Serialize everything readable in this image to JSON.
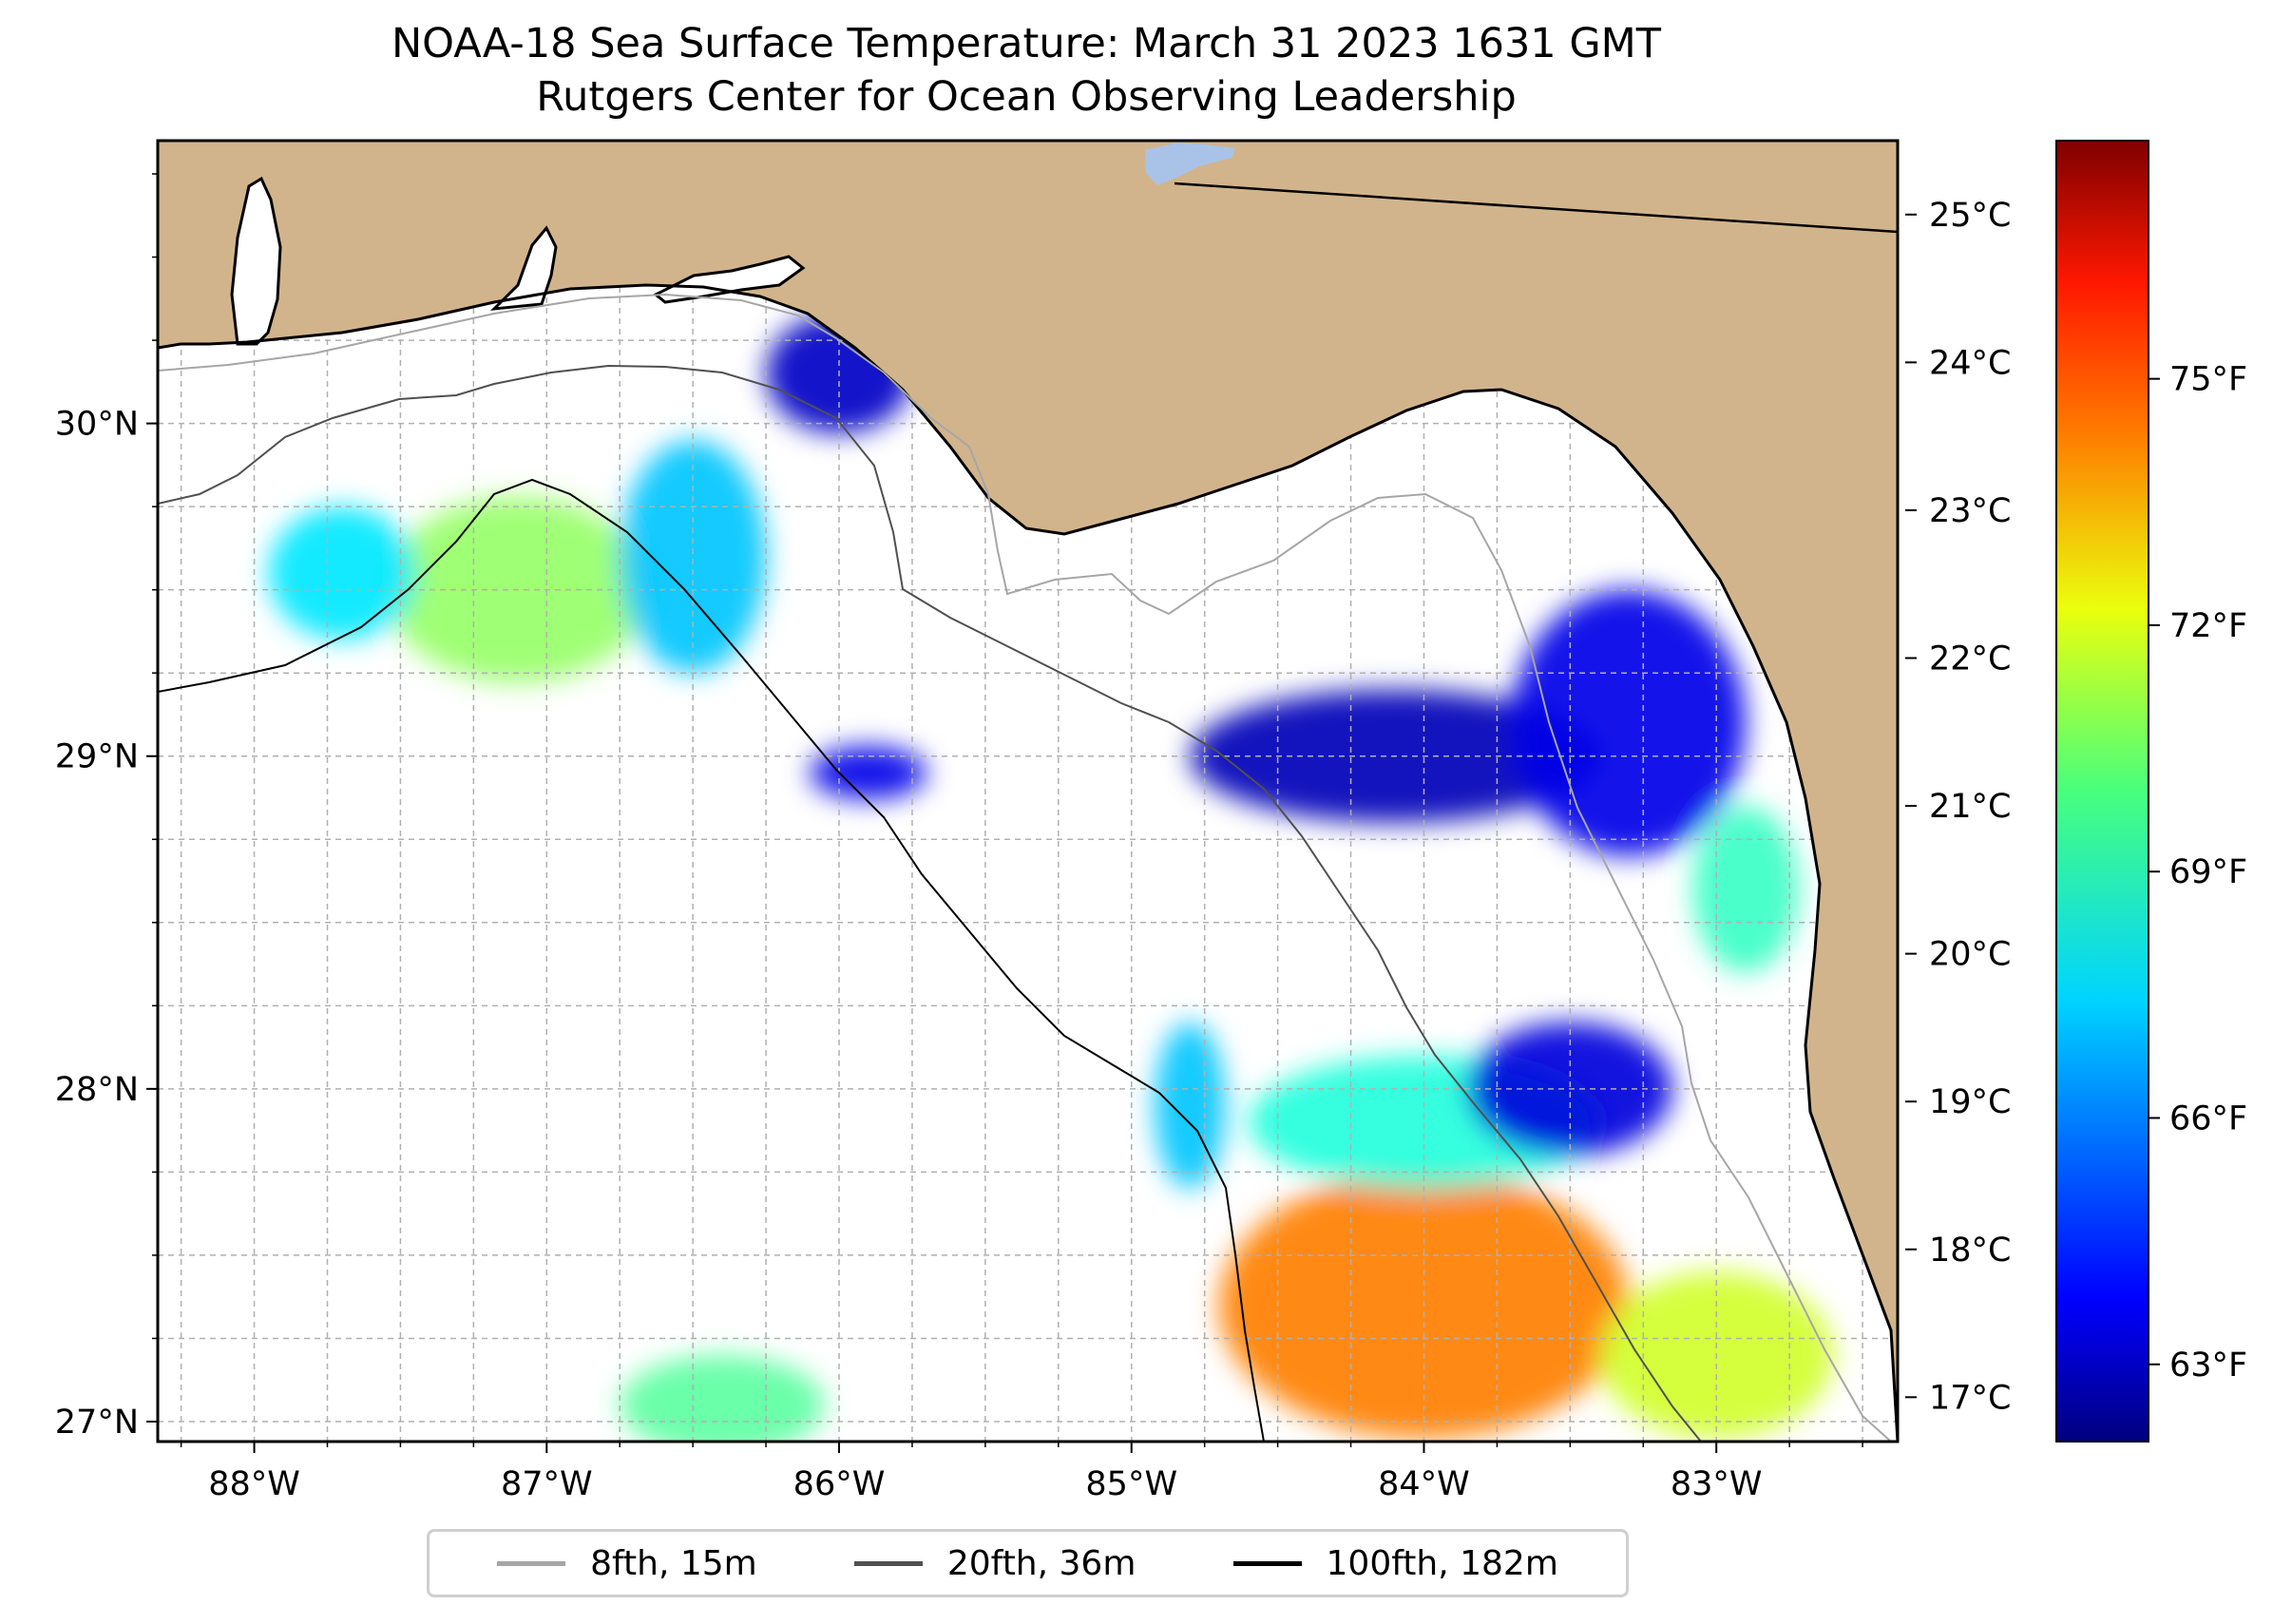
{
  "title": {
    "line1": "NOAA-18 Sea Surface Temperature: March 31 2023 1631 GMT",
    "line2": "Rutgers Center for Ocean Observing Leadership"
  },
  "map": {
    "region": "Northeastern Gulf of Mexico / Florida Big Bend",
    "lon_range": [
      -88.33,
      -82.38
    ],
    "lat_range": [
      26.94,
      30.85
    ],
    "lon_ticks": [
      {
        "value": -88,
        "label": "88°W"
      },
      {
        "value": -87,
        "label": "87°W"
      },
      {
        "value": -86,
        "label": "86°W"
      },
      {
        "value": -85,
        "label": "85°W"
      },
      {
        "value": -84,
        "label": "84°W"
      },
      {
        "value": -83,
        "label": "83°W"
      }
    ],
    "lat_ticks": [
      {
        "value": 27,
        "label": "27°N"
      },
      {
        "value": 28,
        "label": "28°N"
      },
      {
        "value": 29,
        "label": "29°N"
      },
      {
        "value": 30,
        "label": "30°N"
      }
    ],
    "gridlines": true,
    "colors": {
      "land": "#d2b48c",
      "ocean": "#ffffff",
      "coastline": "#000000",
      "grid": "#b0b0b0",
      "iso_8fth": "#a6a6a6",
      "iso_20fth": "#505050",
      "iso_100fth": "#000000",
      "lake": "#a9c3e8"
    }
  },
  "colorbar": {
    "colormap": "jet",
    "celsius_range": [
      16.7,
      25.5
    ],
    "celsius_ticks": [
      {
        "value": 17,
        "label": "17°C"
      },
      {
        "value": 18,
        "label": "18°C"
      },
      {
        "value": 19,
        "label": "19°C"
      },
      {
        "value": 20,
        "label": "20°C"
      },
      {
        "value": 21,
        "label": "21°C"
      },
      {
        "value": 22,
        "label": "22°C"
      },
      {
        "value": 23,
        "label": "23°C"
      },
      {
        "value": 24,
        "label": "24°C"
      },
      {
        "value": 25,
        "label": "25°C"
      }
    ],
    "fahrenheit_ticks": [
      {
        "value": 63,
        "label": "63°F"
      },
      {
        "value": 66,
        "label": "66°F"
      },
      {
        "value": 69,
        "label": "69°F"
      },
      {
        "value": 72,
        "label": "72°F"
      },
      {
        "value": 75,
        "label": "75°F"
      }
    ]
  },
  "legend": {
    "placement": "bottom-center",
    "items": [
      {
        "label": "8fth, 15m",
        "color": "#a6a6a6"
      },
      {
        "label": "20fth, 36m",
        "color": "#505050"
      },
      {
        "label": "100fth, 182m",
        "color": "#000000"
      }
    ]
  },
  "sst_patches": [
    {
      "lon": -87.1,
      "lat": 29.5,
      "rx_deg": 0.45,
      "ry_deg": 0.28,
      "temp_c": 21.3
    },
    {
      "lon": -86.5,
      "lat": 29.6,
      "rx_deg": 0.25,
      "ry_deg": 0.35,
      "temp_c": 19.5
    },
    {
      "lon": -87.7,
      "lat": 29.55,
      "rx_deg": 0.25,
      "ry_deg": 0.2,
      "temp_c": 19.8
    },
    {
      "lon": -86.0,
      "lat": 30.15,
      "rx_deg": 0.25,
      "ry_deg": 0.18,
      "temp_c": 17.3
    },
    {
      "lon": -84.0,
      "lat": 27.35,
      "rx_deg": 0.7,
      "ry_deg": 0.4,
      "temp_c": 23.3
    },
    {
      "lon": -84.0,
      "lat": 27.9,
      "rx_deg": 0.6,
      "ry_deg": 0.2,
      "temp_c": 20.3
    },
    {
      "lon": -83.0,
      "lat": 27.2,
      "rx_deg": 0.4,
      "ry_deg": 0.25,
      "temp_c": 21.8
    },
    {
      "lon": -84.1,
      "lat": 29.0,
      "rx_deg": 0.7,
      "ry_deg": 0.2,
      "temp_c": 17.2
    },
    {
      "lon": -83.3,
      "lat": 29.1,
      "rx_deg": 0.4,
      "ry_deg": 0.4,
      "temp_c": 17.6
    },
    {
      "lon": -82.9,
      "lat": 28.6,
      "rx_deg": 0.18,
      "ry_deg": 0.25,
      "temp_c": 20.5
    },
    {
      "lon": -83.5,
      "lat": 28.0,
      "rx_deg": 0.35,
      "ry_deg": 0.2,
      "temp_c": 17.5
    },
    {
      "lon": -86.4,
      "lat": 27.05,
      "rx_deg": 0.35,
      "ry_deg": 0.15,
      "temp_c": 20.8
    },
    {
      "lon": -85.9,
      "lat": 28.95,
      "rx_deg": 0.2,
      "ry_deg": 0.08,
      "temp_c": 17.6
    },
    {
      "lon": -84.8,
      "lat": 27.95,
      "rx_deg": 0.12,
      "ry_deg": 0.25,
      "temp_c": 19.5
    }
  ]
}
